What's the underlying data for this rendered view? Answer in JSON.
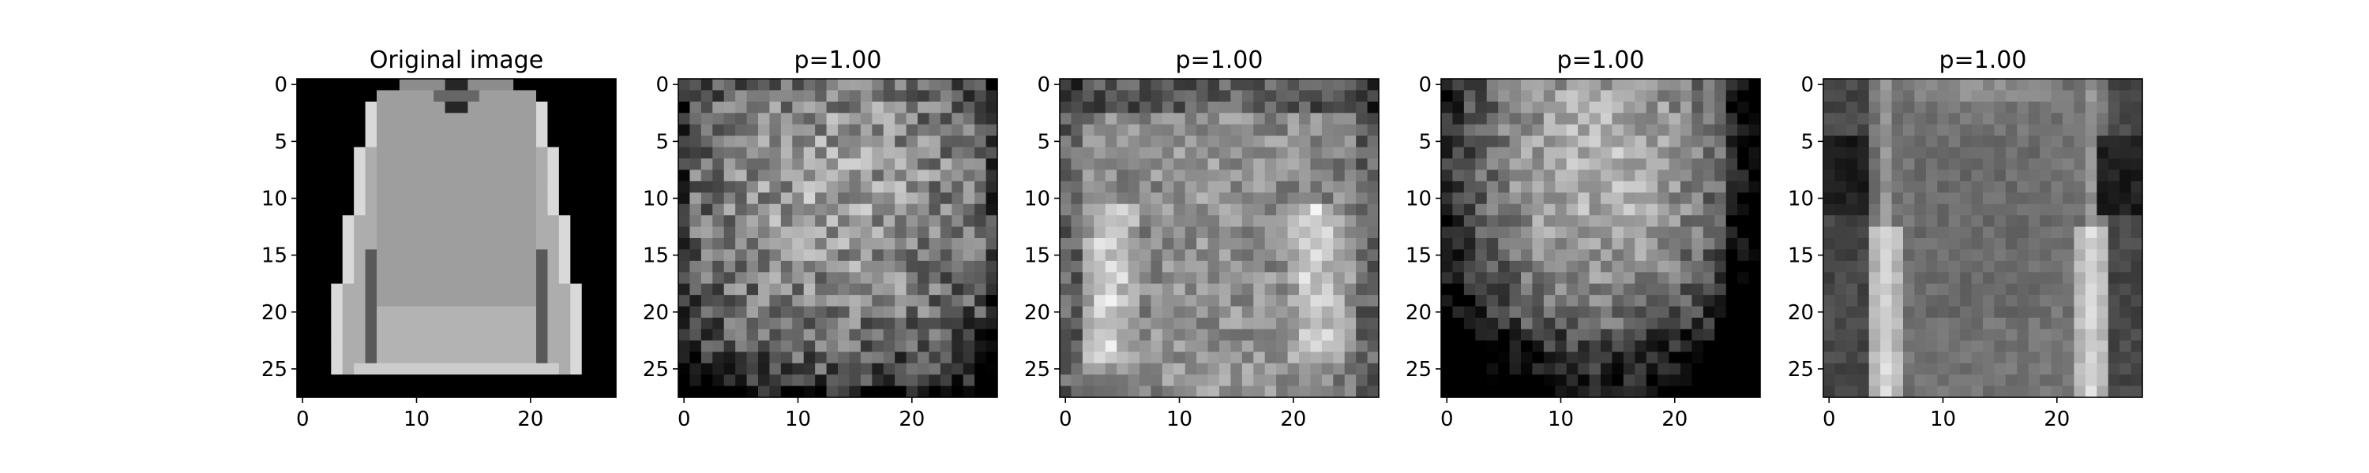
{
  "chart_data": [
    {
      "type": "heatmap",
      "title": "Original image",
      "colormap": "gray",
      "rows": 28,
      "cols": 28,
      "xticks": [
        0,
        10,
        20
      ],
      "yticks": [
        0,
        5,
        10,
        15,
        20,
        25
      ],
      "description_of_values": "Fashion-MNIST pullover on black background"
    },
    {
      "type": "heatmap",
      "title": "p=1.00",
      "colormap": "gray",
      "rows": 28,
      "cols": 28,
      "xticks": [
        0,
        10,
        20
      ],
      "yticks": [
        0,
        5,
        10,
        15,
        20,
        25
      ]
    },
    {
      "type": "heatmap",
      "title": "p=1.00",
      "colormap": "gray",
      "rows": 28,
      "cols": 28,
      "xticks": [
        0,
        10,
        20
      ],
      "yticks": [
        0,
        5,
        10,
        15,
        20,
        25
      ]
    },
    {
      "type": "heatmap",
      "title": "p=1.00",
      "colormap": "gray",
      "rows": 28,
      "cols": 28,
      "xticks": [
        0,
        10,
        20
      ],
      "yticks": [
        0,
        5,
        10,
        15,
        20,
        25
      ]
    },
    {
      "type": "heatmap",
      "title": "p=1.00",
      "colormap": "gray",
      "rows": 28,
      "cols": 28,
      "xticks": [
        0,
        10,
        20
      ],
      "yticks": [
        0,
        5,
        10,
        15,
        20,
        25
      ]
    }
  ]
}
